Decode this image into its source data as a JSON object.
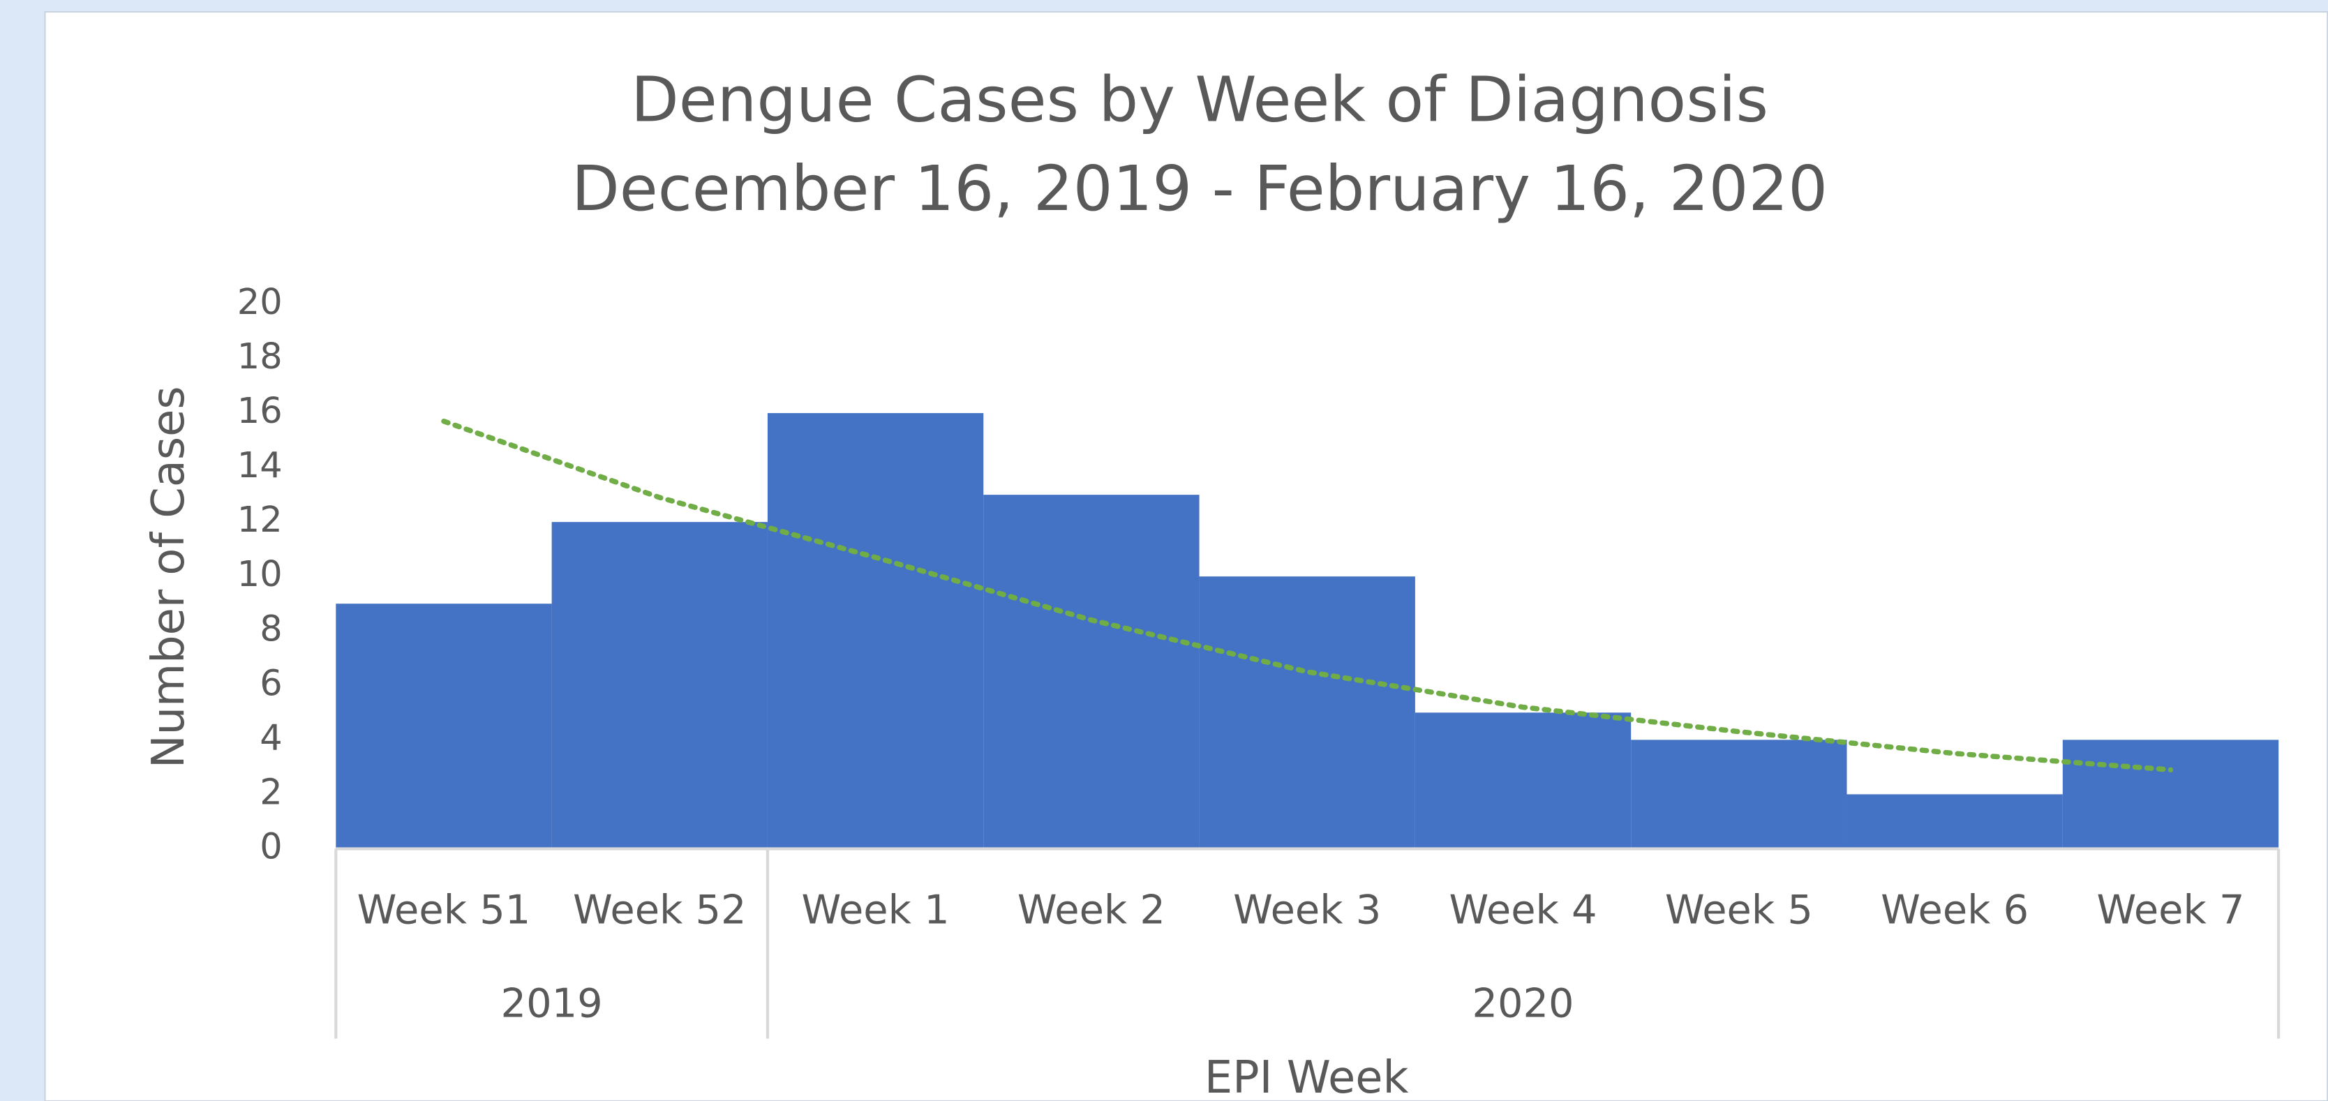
{
  "chart_data": {
    "type": "bar",
    "title": "Dengue Cases by Week of Diagnosis",
    "subtitle": "December 16, 2019 - February 16, 2020",
    "categories": [
      "Week 51",
      "Week 52",
      "Week 1",
      "Week 2",
      "Week 3",
      "Week 4",
      "Week 5",
      "Week 6",
      "Week 7"
    ],
    "groups": [
      {
        "label": "2019",
        "span": 2
      },
      {
        "label": "2020",
        "span": 7
      }
    ],
    "values": [
      9,
      12,
      16,
      13,
      10,
      5,
      4,
      2,
      4
    ],
    "color": "#4472c4",
    "trendline": {
      "values": [
        15.7,
        12.9,
        10.7,
        8.4,
        6.5,
        5.2,
        4.3,
        3.5,
        2.9
      ],
      "color": "#70ad47",
      "style": "dotted"
    },
    "ylim": [
      0,
      20
    ],
    "yticks": [
      0,
      2,
      4,
      6,
      8,
      10,
      12,
      14,
      16,
      18,
      20
    ],
    "grid": false,
    "y_label": "Number of Cases",
    "x_label": "EPI Week"
  }
}
